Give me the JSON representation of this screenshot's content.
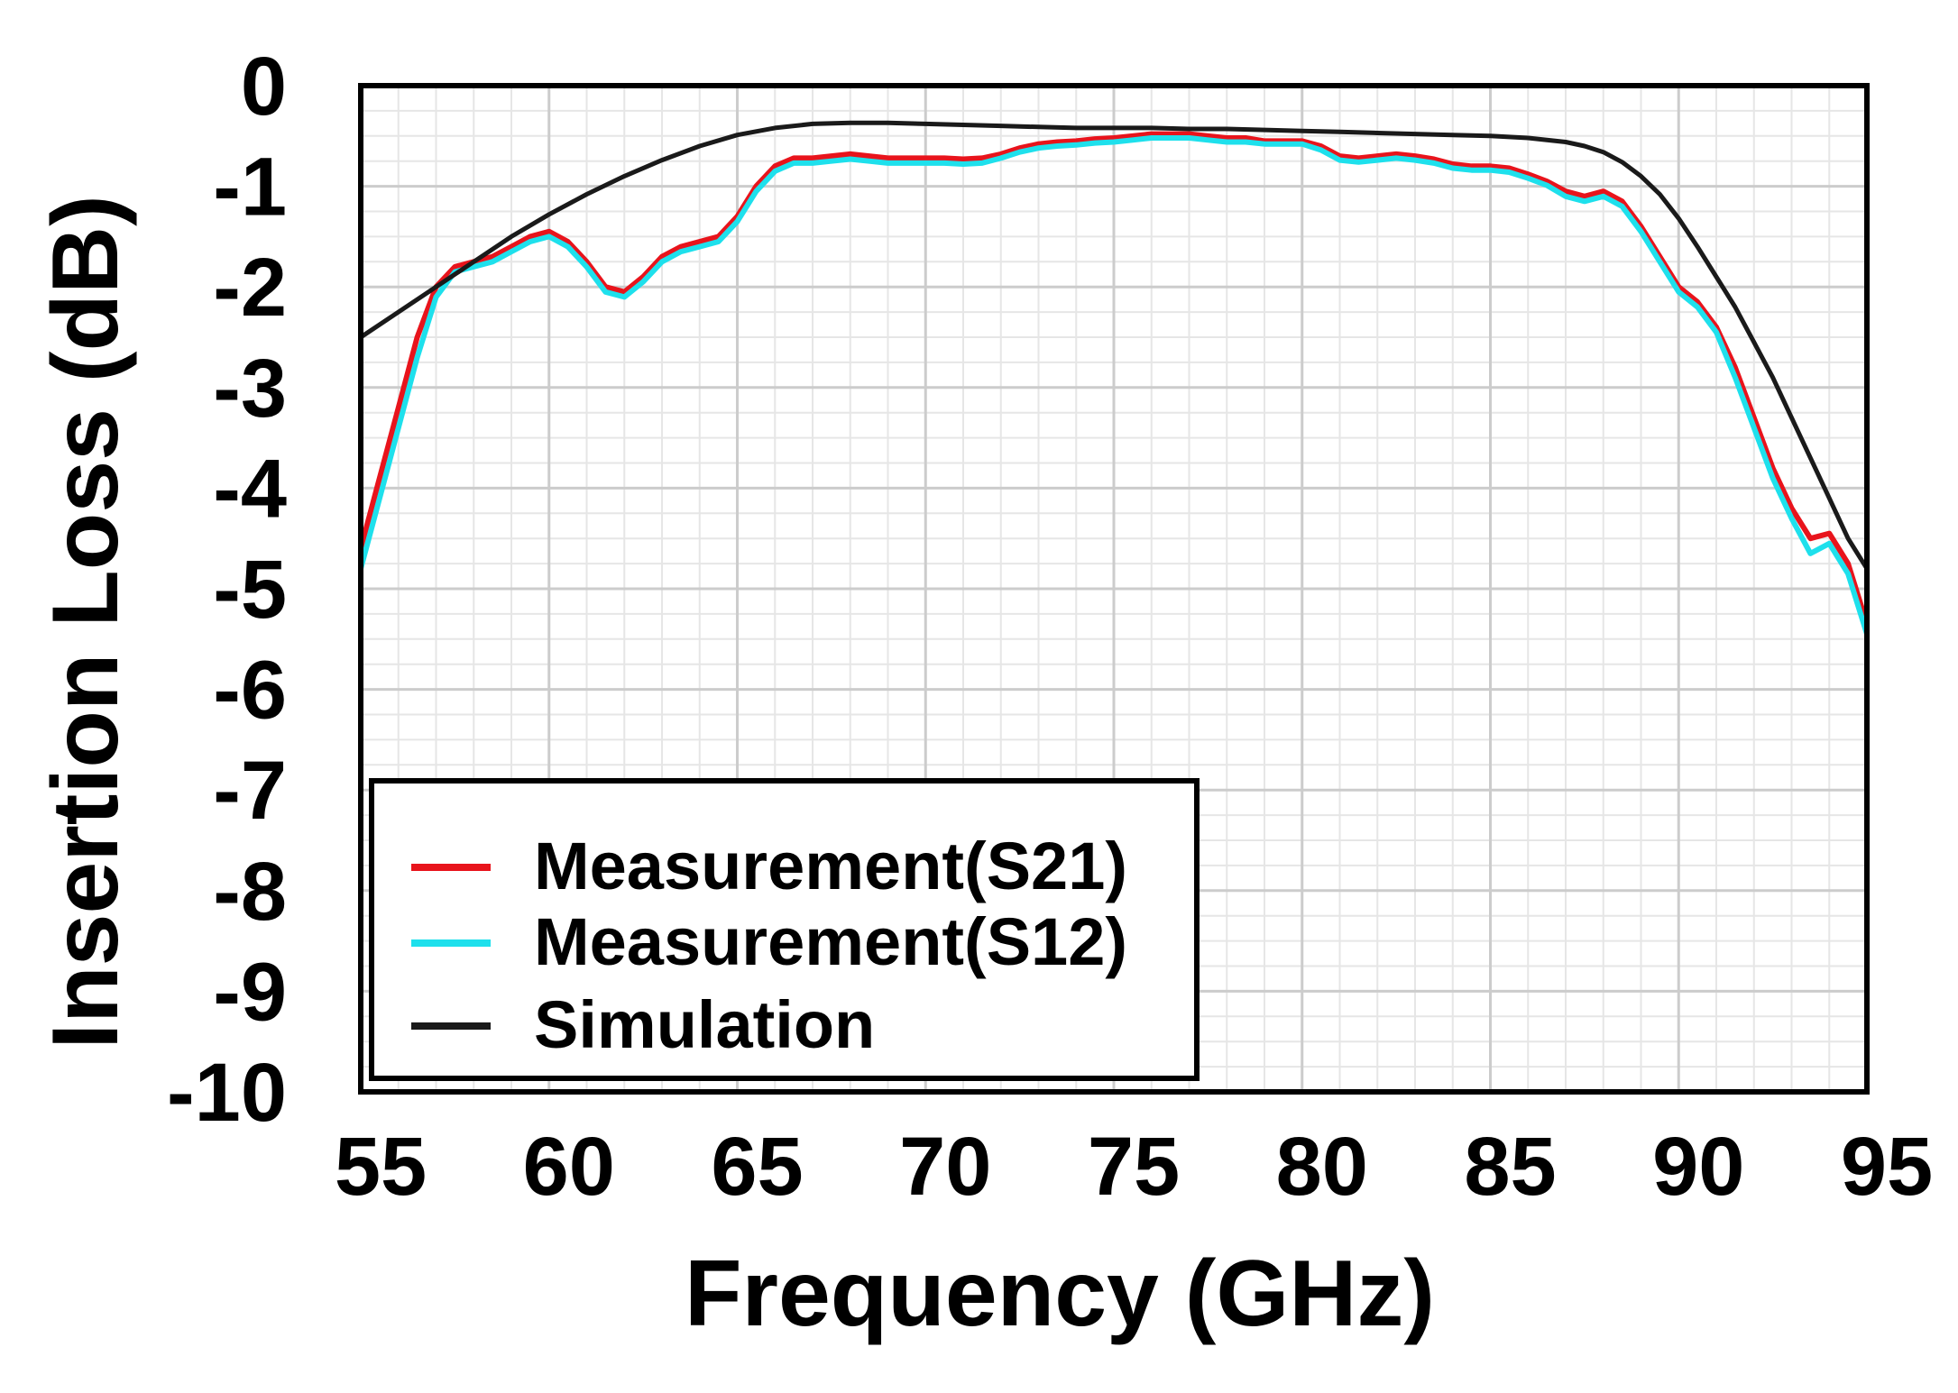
{
  "chart_data": {
    "type": "line",
    "title": "",
    "xlabel": "Frequency (GHz)",
    "ylabel": "Insertion Loss (dB)",
    "xlim": [
      55,
      95
    ],
    "ylim": [
      -10,
      0
    ],
    "xticks": [
      55,
      60,
      65,
      70,
      75,
      80,
      85,
      90,
      95
    ],
    "xtick_labels": [
      "55",
      "60",
      "65",
      "70",
      "75",
      "80",
      "85",
      "90",
      "95"
    ],
    "yticks": [
      0,
      -1,
      -2,
      -3,
      -4,
      -5,
      -6,
      -7,
      -8,
      -9,
      -10
    ],
    "ytick_labels": [
      "0",
      "-1",
      "-2",
      "-3",
      "-4",
      "-5",
      "-6",
      "-7",
      "-8",
      "-9",
      "-10"
    ],
    "grid": true,
    "minor_grid": true,
    "legend_position": "bottom-left",
    "series": [
      {
        "name": "Measurement(S21)",
        "color": "#e8141c",
        "x": [
          55,
          55.5,
          56,
          56.5,
          57,
          57.5,
          58,
          58.5,
          59,
          59.5,
          60,
          60.5,
          61,
          61.5,
          62,
          62.5,
          63,
          63.5,
          64,
          64.5,
          65,
          65.5,
          66,
          66.5,
          67,
          67.5,
          68,
          68.5,
          69,
          69.5,
          70,
          70.5,
          71,
          71.5,
          72,
          72.5,
          73,
          73.5,
          74,
          74.5,
          75,
          75.5,
          76,
          76.5,
          77,
          77.5,
          78,
          78.5,
          79,
          79.5,
          80,
          80.5,
          81,
          81.5,
          82,
          82.5,
          83,
          83.5,
          84,
          84.5,
          85,
          85.5,
          86,
          86.5,
          87,
          87.5,
          88,
          88.5,
          89,
          89.5,
          90,
          90.5,
          91,
          91.5,
          92,
          92.5,
          93,
          93.5,
          94,
          94.5,
          95
        ],
        "values": [
          -4.6,
          -3.9,
          -3.2,
          -2.5,
          -2.0,
          -1.8,
          -1.75,
          -1.7,
          -1.6,
          -1.5,
          -1.45,
          -1.55,
          -1.75,
          -2.0,
          -2.05,
          -1.9,
          -1.7,
          -1.6,
          -1.55,
          -1.5,
          -1.3,
          -1.0,
          -0.8,
          -0.72,
          -0.72,
          -0.7,
          -0.68,
          -0.7,
          -0.72,
          -0.72,
          -0.72,
          -0.72,
          -0.73,
          -0.72,
          -0.68,
          -0.62,
          -0.58,
          -0.56,
          -0.55,
          -0.53,
          -0.52,
          -0.5,
          -0.48,
          -0.48,
          -0.48,
          -0.5,
          -0.52,
          -0.52,
          -0.55,
          -0.55,
          -0.55,
          -0.6,
          -0.7,
          -0.72,
          -0.7,
          -0.68,
          -0.7,
          -0.73,
          -0.78,
          -0.8,
          -0.8,
          -0.82,
          -0.88,
          -0.95,
          -1.05,
          -1.1,
          -1.05,
          -1.15,
          -1.4,
          -1.7,
          -2.0,
          -2.15,
          -2.4,
          -2.8,
          -3.3,
          -3.8,
          -4.2,
          -4.5,
          -4.45,
          -4.75,
          -5.35
        ]
      },
      {
        "name": "Measurement(S12)",
        "color": "#1ee0ec",
        "x": [
          55,
          55.5,
          56,
          56.5,
          57,
          57.5,
          58,
          58.5,
          59,
          59.5,
          60,
          60.5,
          61,
          61.5,
          62,
          62.5,
          63,
          63.5,
          64,
          64.5,
          65,
          65.5,
          66,
          66.5,
          67,
          67.5,
          68,
          68.5,
          69,
          69.5,
          70,
          70.5,
          71,
          71.5,
          72,
          72.5,
          73,
          73.5,
          74,
          74.5,
          75,
          75.5,
          76,
          76.5,
          77,
          77.5,
          78,
          78.5,
          79,
          79.5,
          80,
          80.5,
          81,
          81.5,
          82,
          82.5,
          83,
          83.5,
          84,
          84.5,
          85,
          85.5,
          86,
          86.5,
          87,
          87.5,
          88,
          88.5,
          89,
          89.5,
          90,
          90.5,
          91,
          91.5,
          92,
          92.5,
          93,
          93.5,
          94,
          94.5,
          95
        ],
        "values": [
          -4.8,
          -4.1,
          -3.4,
          -2.7,
          -2.1,
          -1.85,
          -1.8,
          -1.75,
          -1.65,
          -1.55,
          -1.5,
          -1.6,
          -1.8,
          -2.05,
          -2.1,
          -1.95,
          -1.75,
          -1.65,
          -1.6,
          -1.55,
          -1.35,
          -1.05,
          -0.85,
          -0.77,
          -0.77,
          -0.75,
          -0.73,
          -0.75,
          -0.77,
          -0.77,
          -0.77,
          -0.77,
          -0.78,
          -0.77,
          -0.72,
          -0.66,
          -0.62,
          -0.6,
          -0.59,
          -0.57,
          -0.56,
          -0.54,
          -0.52,
          -0.52,
          -0.52,
          -0.54,
          -0.56,
          -0.56,
          -0.58,
          -0.58,
          -0.58,
          -0.64,
          -0.74,
          -0.76,
          -0.74,
          -0.72,
          -0.74,
          -0.77,
          -0.82,
          -0.84,
          -0.84,
          -0.86,
          -0.92,
          -0.99,
          -1.1,
          -1.15,
          -1.1,
          -1.2,
          -1.45,
          -1.75,
          -2.05,
          -2.2,
          -2.45,
          -2.9,
          -3.4,
          -3.9,
          -4.3,
          -4.65,
          -4.55,
          -4.85,
          -5.45
        ]
      },
      {
        "name": "Simulation",
        "color": "#1a1a1a",
        "x": [
          55,
          56,
          57,
          58,
          59,
          60,
          61,
          62,
          63,
          64,
          65,
          66,
          67,
          68,
          69,
          70,
          71,
          72,
          73,
          74,
          75,
          76,
          77,
          78,
          79,
          80,
          81,
          82,
          83,
          84,
          85,
          86,
          87,
          87.5,
          88,
          88.5,
          89,
          89.5,
          90,
          90.5,
          91,
          91.5,
          92,
          92.5,
          93,
          93.5,
          94,
          94.5,
          95
        ],
        "values": [
          -2.5,
          -2.25,
          -2.0,
          -1.75,
          -1.5,
          -1.28,
          -1.08,
          -0.9,
          -0.74,
          -0.6,
          -0.49,
          -0.42,
          -0.38,
          -0.37,
          -0.37,
          -0.38,
          -0.39,
          -0.4,
          -0.41,
          -0.42,
          -0.42,
          -0.42,
          -0.43,
          -0.43,
          -0.44,
          -0.45,
          -0.46,
          -0.47,
          -0.48,
          -0.49,
          -0.5,
          -0.52,
          -0.56,
          -0.6,
          -0.66,
          -0.76,
          -0.9,
          -1.08,
          -1.32,
          -1.6,
          -1.9,
          -2.2,
          -2.55,
          -2.9,
          -3.3,
          -3.7,
          -4.1,
          -4.5,
          -4.8
        ]
      }
    ]
  }
}
